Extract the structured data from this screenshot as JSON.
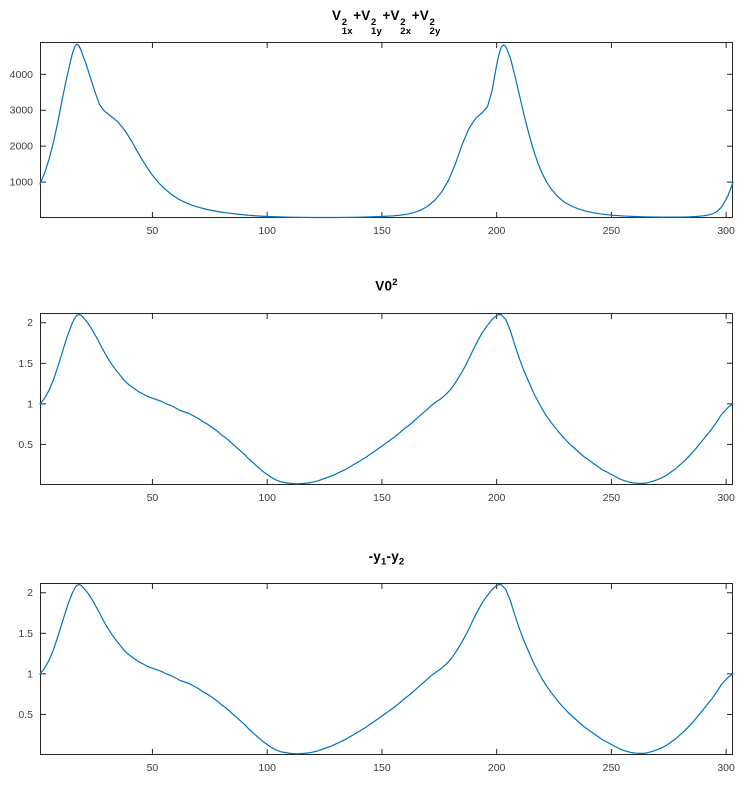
{
  "figure": {
    "background": "#ffffff"
  },
  "chart_data": [
    {
      "type": "line",
      "title_parts": [
        {
          "t": "V"
        },
        {
          "sup": "2",
          "sub": "1x"
        },
        {
          "t": "+V"
        },
        {
          "sup": "2",
          "sub": "1y"
        },
        {
          "t": "+V"
        },
        {
          "sup": "2",
          "sub": "2x"
        },
        {
          "t": "+V"
        },
        {
          "sup": "2",
          "sub": "2y"
        }
      ],
      "title_plain": "V1x^2+V1y^2+V2x^2+V2y^2",
      "line_color": "#0072BD",
      "axis_color": "#262626",
      "grid": false,
      "legend": null,
      "xlim": [
        1,
        303
      ],
      "ylim": [
        0,
        4900
      ],
      "xticks": [
        50,
        100,
        150,
        200,
        250,
        300
      ],
      "xtick_labels": [
        "50",
        "100",
        "150",
        "200",
        "250",
        "300"
      ],
      "yticks": [
        1000,
        2000,
        3000,
        4000
      ],
      "ytick_labels": [
        "1000",
        "2000",
        "3000",
        "4000"
      ],
      "x": [
        1,
        3,
        5,
        7,
        9,
        11,
        13,
        15,
        16,
        17,
        18,
        19,
        21,
        23,
        25,
        27,
        29,
        31,
        33,
        35,
        37,
        39,
        41,
        43,
        45,
        47,
        49,
        51,
        53,
        55,
        58,
        61,
        64,
        67,
        70,
        73,
        76,
        80,
        84,
        88,
        92,
        96,
        100,
        105,
        110,
        115,
        120,
        125,
        130,
        135,
        140,
        145,
        150,
        155,
        158,
        161,
        164,
        167,
        170,
        173,
        176,
        179,
        182,
        185,
        188,
        191,
        194,
        196,
        198,
        200,
        201,
        202,
        203,
        204,
        206,
        208,
        210,
        212,
        214,
        216,
        218,
        220,
        222,
        224,
        226,
        228,
        230,
        233,
        236,
        239,
        242,
        245,
        248,
        251,
        254,
        257,
        260,
        264,
        268,
        272,
        276,
        280,
        284,
        287,
        290,
        292,
        294,
        296,
        298,
        300,
        301,
        302,
        303
      ],
      "y": [
        950,
        1250,
        1650,
        2150,
        2750,
        3400,
        4000,
        4550,
        4750,
        4840,
        4800,
        4650,
        4300,
        3900,
        3500,
        3150,
        2980,
        2880,
        2780,
        2670,
        2520,
        2340,
        2130,
        1900,
        1680,
        1470,
        1280,
        1110,
        960,
        830,
        670,
        540,
        440,
        360,
        300,
        250,
        210,
        165,
        130,
        100,
        75,
        55,
        42,
        30,
        22,
        17,
        14,
        13,
        14,
        17,
        22,
        30,
        42,
        60,
        78,
        105,
        150,
        220,
        330,
        490,
        720,
        1050,
        1500,
        2050,
        2500,
        2780,
        2950,
        3100,
        3550,
        4250,
        4550,
        4750,
        4820,
        4780,
        4450,
        3950,
        3400,
        2850,
        2350,
        1900,
        1520,
        1220,
        980,
        790,
        640,
        520,
        420,
        320,
        245,
        190,
        148,
        116,
        92,
        74,
        60,
        49,
        41,
        33,
        28,
        25,
        24,
        26,
        32,
        42,
        60,
        80,
        115,
        180,
        300,
        520,
        650,
        820,
        1000
      ]
    },
    {
      "type": "line",
      "title_parts": [
        {
          "t": "V0"
        },
        {
          "sup": "2"
        }
      ],
      "title_plain": "V0^2",
      "line_color": "#0072BD",
      "axis_color": "#262626",
      "grid": false,
      "legend": null,
      "xlim": [
        1,
        303
      ],
      "ylim": [
        0,
        2.12
      ],
      "xticks": [
        50,
        100,
        150,
        200,
        250,
        300
      ],
      "xtick_labels": [
        "50",
        "100",
        "150",
        "200",
        "250",
        "300"
      ],
      "yticks": [
        0.5,
        1,
        1.5,
        2
      ],
      "ytick_labels": [
        "0.5",
        "1",
        "1.5",
        "2"
      ],
      "x": [
        1,
        3,
        5,
        7,
        9,
        11,
        13,
        15,
        16,
        17,
        18,
        19,
        20,
        22,
        24,
        26,
        28,
        30,
        32,
        34,
        36,
        38,
        40,
        42,
        44,
        46,
        48,
        50,
        52,
        54,
        56,
        58,
        60,
        62,
        64,
        66,
        68,
        70,
        72,
        74,
        76,
        78,
        80,
        82,
        84,
        86,
        88,
        90,
        92,
        94,
        96,
        98,
        100,
        102,
        104,
        106,
        108,
        110,
        113,
        116,
        119,
        122,
        125,
        128,
        131,
        134,
        137,
        140,
        143,
        146,
        149,
        152,
        155,
        158,
        160,
        162,
        164,
        166,
        168,
        170,
        172,
        174,
        176,
        178,
        180,
        182,
        184,
        186,
        188,
        190,
        192,
        194,
        196,
        198,
        200,
        201,
        202,
        204,
        206,
        208,
        210,
        212,
        214,
        216,
        218,
        220,
        222,
        224,
        226,
        228,
        230,
        232,
        234,
        236,
        238,
        240,
        242,
        244,
        246,
        248,
        250,
        252,
        254,
        256,
        258,
        260,
        262,
        264,
        266,
        268,
        270,
        272,
        274,
        276,
        278,
        280,
        282,
        284,
        286,
        288,
        290,
        292,
        294,
        296,
        298,
        300,
        301,
        302,
        303
      ],
      "y": [
        1.0,
        1.07,
        1.17,
        1.31,
        1.48,
        1.66,
        1.84,
        1.99,
        2.05,
        2.09,
        2.1,
        2.09,
        2.06,
        1.99,
        1.9,
        1.8,
        1.69,
        1.59,
        1.5,
        1.42,
        1.35,
        1.28,
        1.23,
        1.19,
        1.15,
        1.12,
        1.09,
        1.07,
        1.05,
        1.03,
        1.0,
        0.98,
        0.95,
        0.92,
        0.9,
        0.88,
        0.85,
        0.82,
        0.78,
        0.75,
        0.71,
        0.67,
        0.62,
        0.58,
        0.53,
        0.48,
        0.43,
        0.38,
        0.32,
        0.27,
        0.22,
        0.17,
        0.13,
        0.09,
        0.06,
        0.04,
        0.03,
        0.02,
        0.015,
        0.02,
        0.03,
        0.05,
        0.08,
        0.11,
        0.15,
        0.19,
        0.24,
        0.29,
        0.34,
        0.4,
        0.46,
        0.52,
        0.58,
        0.65,
        0.7,
        0.74,
        0.79,
        0.84,
        0.89,
        0.94,
        0.99,
        1.03,
        1.07,
        1.12,
        1.18,
        1.26,
        1.35,
        1.45,
        1.56,
        1.68,
        1.79,
        1.89,
        1.97,
        2.04,
        2.09,
        2.1,
        2.1,
        2.04,
        1.9,
        1.72,
        1.55,
        1.4,
        1.27,
        1.14,
        1.03,
        0.93,
        0.84,
        0.76,
        0.69,
        0.62,
        0.56,
        0.5,
        0.45,
        0.4,
        0.35,
        0.31,
        0.27,
        0.23,
        0.19,
        0.16,
        0.13,
        0.1,
        0.07,
        0.05,
        0.035,
        0.025,
        0.02,
        0.02,
        0.03,
        0.045,
        0.065,
        0.09,
        0.12,
        0.16,
        0.2,
        0.25,
        0.3,
        0.36,
        0.42,
        0.49,
        0.56,
        0.63,
        0.7,
        0.78,
        0.87,
        0.93,
        0.96,
        0.98,
        1.0
      ]
    },
    {
      "type": "line",
      "title_parts": [
        {
          "t": "-y"
        },
        {
          "sub": "1"
        },
        {
          "t": "-y"
        },
        {
          "sub": "2"
        }
      ],
      "title_plain": "-y1-y2",
      "line_color": "#0072BD",
      "axis_color": "#262626",
      "grid": false,
      "legend": null,
      "xlim": [
        1,
        303
      ],
      "ylim": [
        0,
        2.12
      ],
      "xticks": [
        50,
        100,
        150,
        200,
        250,
        300
      ],
      "xtick_labels": [
        "50",
        "100",
        "150",
        "200",
        "250",
        "300"
      ],
      "yticks": [
        0.5,
        1,
        1.5,
        2
      ],
      "ytick_labels": [
        "0.5",
        "1",
        "1.5",
        "2"
      ],
      "x": [
        1,
        3,
        5,
        7,
        9,
        11,
        13,
        15,
        16,
        17,
        18,
        19,
        20,
        22,
        24,
        26,
        28,
        30,
        32,
        34,
        36,
        38,
        40,
        42,
        44,
        46,
        48,
        50,
        52,
        54,
        56,
        58,
        60,
        62,
        64,
        66,
        68,
        70,
        72,
        74,
        76,
        78,
        80,
        82,
        84,
        86,
        88,
        90,
        92,
        94,
        96,
        98,
        100,
        102,
        104,
        106,
        108,
        110,
        113,
        116,
        119,
        122,
        125,
        128,
        131,
        134,
        137,
        140,
        143,
        146,
        149,
        152,
        155,
        158,
        160,
        162,
        164,
        166,
        168,
        170,
        172,
        174,
        176,
        178,
        180,
        182,
        184,
        186,
        188,
        190,
        192,
        194,
        196,
        198,
        200,
        201,
        202,
        204,
        206,
        208,
        210,
        212,
        214,
        216,
        218,
        220,
        222,
        224,
        226,
        228,
        230,
        232,
        234,
        236,
        238,
        240,
        242,
        244,
        246,
        248,
        250,
        252,
        254,
        256,
        258,
        260,
        262,
        264,
        266,
        268,
        270,
        272,
        274,
        276,
        278,
        280,
        282,
        284,
        286,
        288,
        290,
        292,
        294,
        296,
        298,
        300,
        301,
        302,
        303
      ],
      "y": [
        1.0,
        1.07,
        1.17,
        1.31,
        1.48,
        1.66,
        1.84,
        1.99,
        2.05,
        2.09,
        2.1,
        2.09,
        2.06,
        1.99,
        1.9,
        1.8,
        1.69,
        1.59,
        1.5,
        1.42,
        1.35,
        1.28,
        1.23,
        1.19,
        1.15,
        1.12,
        1.09,
        1.07,
        1.05,
        1.03,
        1.0,
        0.98,
        0.95,
        0.92,
        0.9,
        0.88,
        0.85,
        0.82,
        0.78,
        0.75,
        0.71,
        0.67,
        0.62,
        0.58,
        0.53,
        0.48,
        0.43,
        0.38,
        0.32,
        0.27,
        0.22,
        0.17,
        0.13,
        0.09,
        0.06,
        0.04,
        0.03,
        0.02,
        0.015,
        0.02,
        0.03,
        0.05,
        0.08,
        0.11,
        0.15,
        0.19,
        0.24,
        0.29,
        0.34,
        0.4,
        0.46,
        0.52,
        0.58,
        0.65,
        0.7,
        0.74,
        0.79,
        0.84,
        0.89,
        0.94,
        0.99,
        1.03,
        1.07,
        1.12,
        1.18,
        1.26,
        1.35,
        1.45,
        1.56,
        1.68,
        1.79,
        1.89,
        1.97,
        2.04,
        2.09,
        2.1,
        2.1,
        2.04,
        1.9,
        1.72,
        1.55,
        1.4,
        1.27,
        1.14,
        1.03,
        0.93,
        0.84,
        0.76,
        0.69,
        0.62,
        0.56,
        0.5,
        0.45,
        0.4,
        0.35,
        0.31,
        0.27,
        0.23,
        0.19,
        0.16,
        0.13,
        0.1,
        0.07,
        0.05,
        0.035,
        0.025,
        0.02,
        0.02,
        0.03,
        0.045,
        0.065,
        0.09,
        0.12,
        0.16,
        0.2,
        0.25,
        0.3,
        0.36,
        0.42,
        0.49,
        0.56,
        0.63,
        0.7,
        0.78,
        0.87,
        0.93,
        0.96,
        0.98,
        1.0
      ]
    }
  ]
}
